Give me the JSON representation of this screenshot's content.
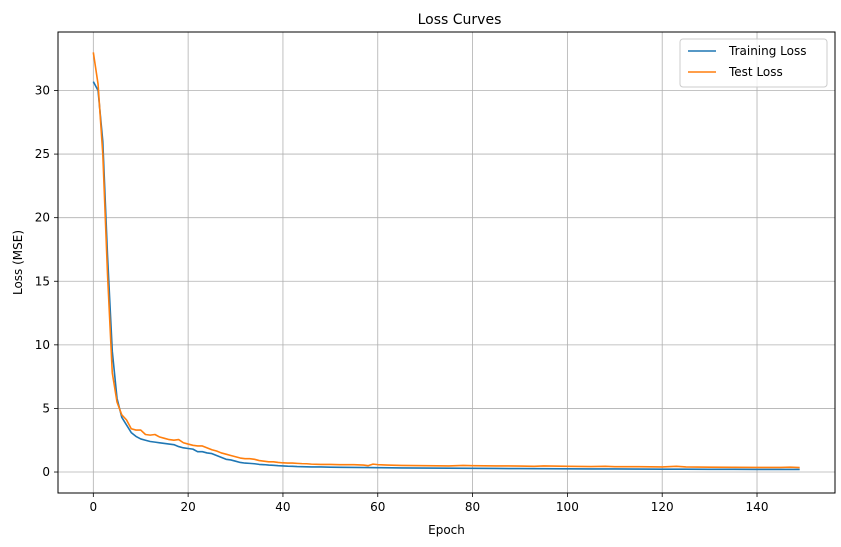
{
  "chart_data": {
    "type": "line",
    "title": "Loss Curves",
    "xlabel": "Epoch",
    "ylabel": "Loss (MSE)",
    "xlim": [
      -7.45,
      156.45
    ],
    "ylim": [
      -1.65,
      34.6
    ],
    "x_ticks": [
      0,
      20,
      40,
      60,
      80,
      100,
      120,
      140
    ],
    "y_ticks": [
      0,
      5,
      10,
      15,
      20,
      25,
      30
    ],
    "grid": true,
    "legend_position": "top-right",
    "colors": {
      "Training Loss": "#1f77b4",
      "Test Loss": "#ff7f0e"
    },
    "series": [
      {
        "name": "Training Loss",
        "color": "#1f77b4",
        "points": [
          [
            0,
            30.7
          ],
          [
            1,
            30.0
          ],
          [
            2,
            26.0
          ],
          [
            3,
            17.0
          ],
          [
            4,
            9.5
          ],
          [
            5,
            5.8
          ],
          [
            6,
            4.3
          ],
          [
            7,
            3.7
          ],
          [
            8,
            3.1
          ],
          [
            9,
            2.8
          ],
          [
            10,
            2.6
          ],
          [
            11,
            2.5
          ],
          [
            12,
            2.4
          ],
          [
            13,
            2.35
          ],
          [
            14,
            2.3
          ],
          [
            15,
            2.25
          ],
          [
            16,
            2.2
          ],
          [
            17,
            2.15
          ],
          [
            18,
            2.0
          ],
          [
            19,
            1.9
          ],
          [
            20,
            1.85
          ],
          [
            21,
            1.8
          ],
          [
            22,
            1.6
          ],
          [
            23,
            1.6
          ],
          [
            24,
            1.5
          ],
          [
            25,
            1.45
          ],
          [
            26,
            1.3
          ],
          [
            27,
            1.15
          ],
          [
            28,
            1.0
          ],
          [
            29,
            0.95
          ],
          [
            30,
            0.85
          ],
          [
            31,
            0.75
          ],
          [
            32,
            0.7
          ],
          [
            33,
            0.68
          ],
          [
            34,
            0.65
          ],
          [
            35,
            0.6
          ],
          [
            36,
            0.58
          ],
          [
            37,
            0.55
          ],
          [
            38,
            0.53
          ],
          [
            39,
            0.5
          ],
          [
            40,
            0.48
          ],
          [
            41,
            0.46
          ],
          [
            42,
            0.45
          ],
          [
            43,
            0.43
          ],
          [
            44,
            0.42
          ],
          [
            45,
            0.41
          ],
          [
            46,
            0.4
          ],
          [
            48,
            0.4
          ],
          [
            50,
            0.38
          ],
          [
            52,
            0.37
          ],
          [
            55,
            0.36
          ],
          [
            58,
            0.35
          ],
          [
            60,
            0.34
          ],
          [
            63,
            0.33
          ],
          [
            65,
            0.32
          ],
          [
            70,
            0.31
          ],
          [
            75,
            0.3
          ],
          [
            80,
            0.29
          ],
          [
            85,
            0.28
          ],
          [
            90,
            0.27
          ],
          [
            95,
            0.26
          ],
          [
            100,
            0.25
          ],
          [
            105,
            0.24
          ],
          [
            110,
            0.24
          ],
          [
            115,
            0.23
          ],
          [
            120,
            0.22
          ],
          [
            125,
            0.22
          ],
          [
            130,
            0.21
          ],
          [
            135,
            0.21
          ],
          [
            140,
            0.2
          ],
          [
            145,
            0.2
          ],
          [
            149,
            0.2
          ]
        ]
      },
      {
        "name": "Test Loss",
        "color": "#ff7f0e",
        "points": [
          [
            0,
            33.0
          ],
          [
            1,
            30.5
          ],
          [
            2,
            25.0
          ],
          [
            3,
            15.5
          ],
          [
            4,
            7.8
          ],
          [
            5,
            5.5
          ],
          [
            6,
            4.5
          ],
          [
            7,
            4.1
          ],
          [
            8,
            3.4
          ],
          [
            9,
            3.3
          ],
          [
            10,
            3.3
          ],
          [
            11,
            2.95
          ],
          [
            12,
            2.9
          ],
          [
            13,
            2.95
          ],
          [
            14,
            2.75
          ],
          [
            15,
            2.65
          ],
          [
            16,
            2.55
          ],
          [
            17,
            2.5
          ],
          [
            18,
            2.55
          ],
          [
            19,
            2.3
          ],
          [
            20,
            2.2
          ],
          [
            21,
            2.1
          ],
          [
            22,
            2.05
          ],
          [
            23,
            2.05
          ],
          [
            24,
            1.9
          ],
          [
            25,
            1.75
          ],
          [
            26,
            1.65
          ],
          [
            27,
            1.5
          ],
          [
            28,
            1.4
          ],
          [
            29,
            1.3
          ],
          [
            30,
            1.2
          ],
          [
            31,
            1.1
          ],
          [
            32,
            1.05
          ],
          [
            33,
            1.05
          ],
          [
            34,
            1.0
          ],
          [
            35,
            0.9
          ],
          [
            36,
            0.85
          ],
          [
            37,
            0.8
          ],
          [
            38,
            0.8
          ],
          [
            39,
            0.75
          ],
          [
            40,
            0.72
          ],
          [
            41,
            0.7
          ],
          [
            42,
            0.7
          ],
          [
            43,
            0.68
          ],
          [
            44,
            0.66
          ],
          [
            45,
            0.65
          ],
          [
            46,
            0.62
          ],
          [
            48,
            0.6
          ],
          [
            50,
            0.6
          ],
          [
            52,
            0.58
          ],
          [
            55,
            0.58
          ],
          [
            57,
            0.55
          ],
          [
            58,
            0.5
          ],
          [
            59,
            0.62
          ],
          [
            60,
            0.58
          ],
          [
            62,
            0.55
          ],
          [
            65,
            0.52
          ],
          [
            70,
            0.5
          ],
          [
            75,
            0.48
          ],
          [
            78,
            0.52
          ],
          [
            80,
            0.5
          ],
          [
            85,
            0.48
          ],
          [
            90,
            0.47
          ],
          [
            93,
            0.45
          ],
          [
            95,
            0.48
          ],
          [
            100,
            0.45
          ],
          [
            105,
            0.43
          ],
          [
            108,
            0.45
          ],
          [
            110,
            0.42
          ],
          [
            115,
            0.42
          ],
          [
            120,
            0.4
          ],
          [
            123,
            0.45
          ],
          [
            125,
            0.4
          ],
          [
            130,
            0.38
          ],
          [
            135,
            0.37
          ],
          [
            140,
            0.36
          ],
          [
            145,
            0.36
          ],
          [
            147,
            0.38
          ],
          [
            149,
            0.35
          ]
        ]
      }
    ]
  }
}
